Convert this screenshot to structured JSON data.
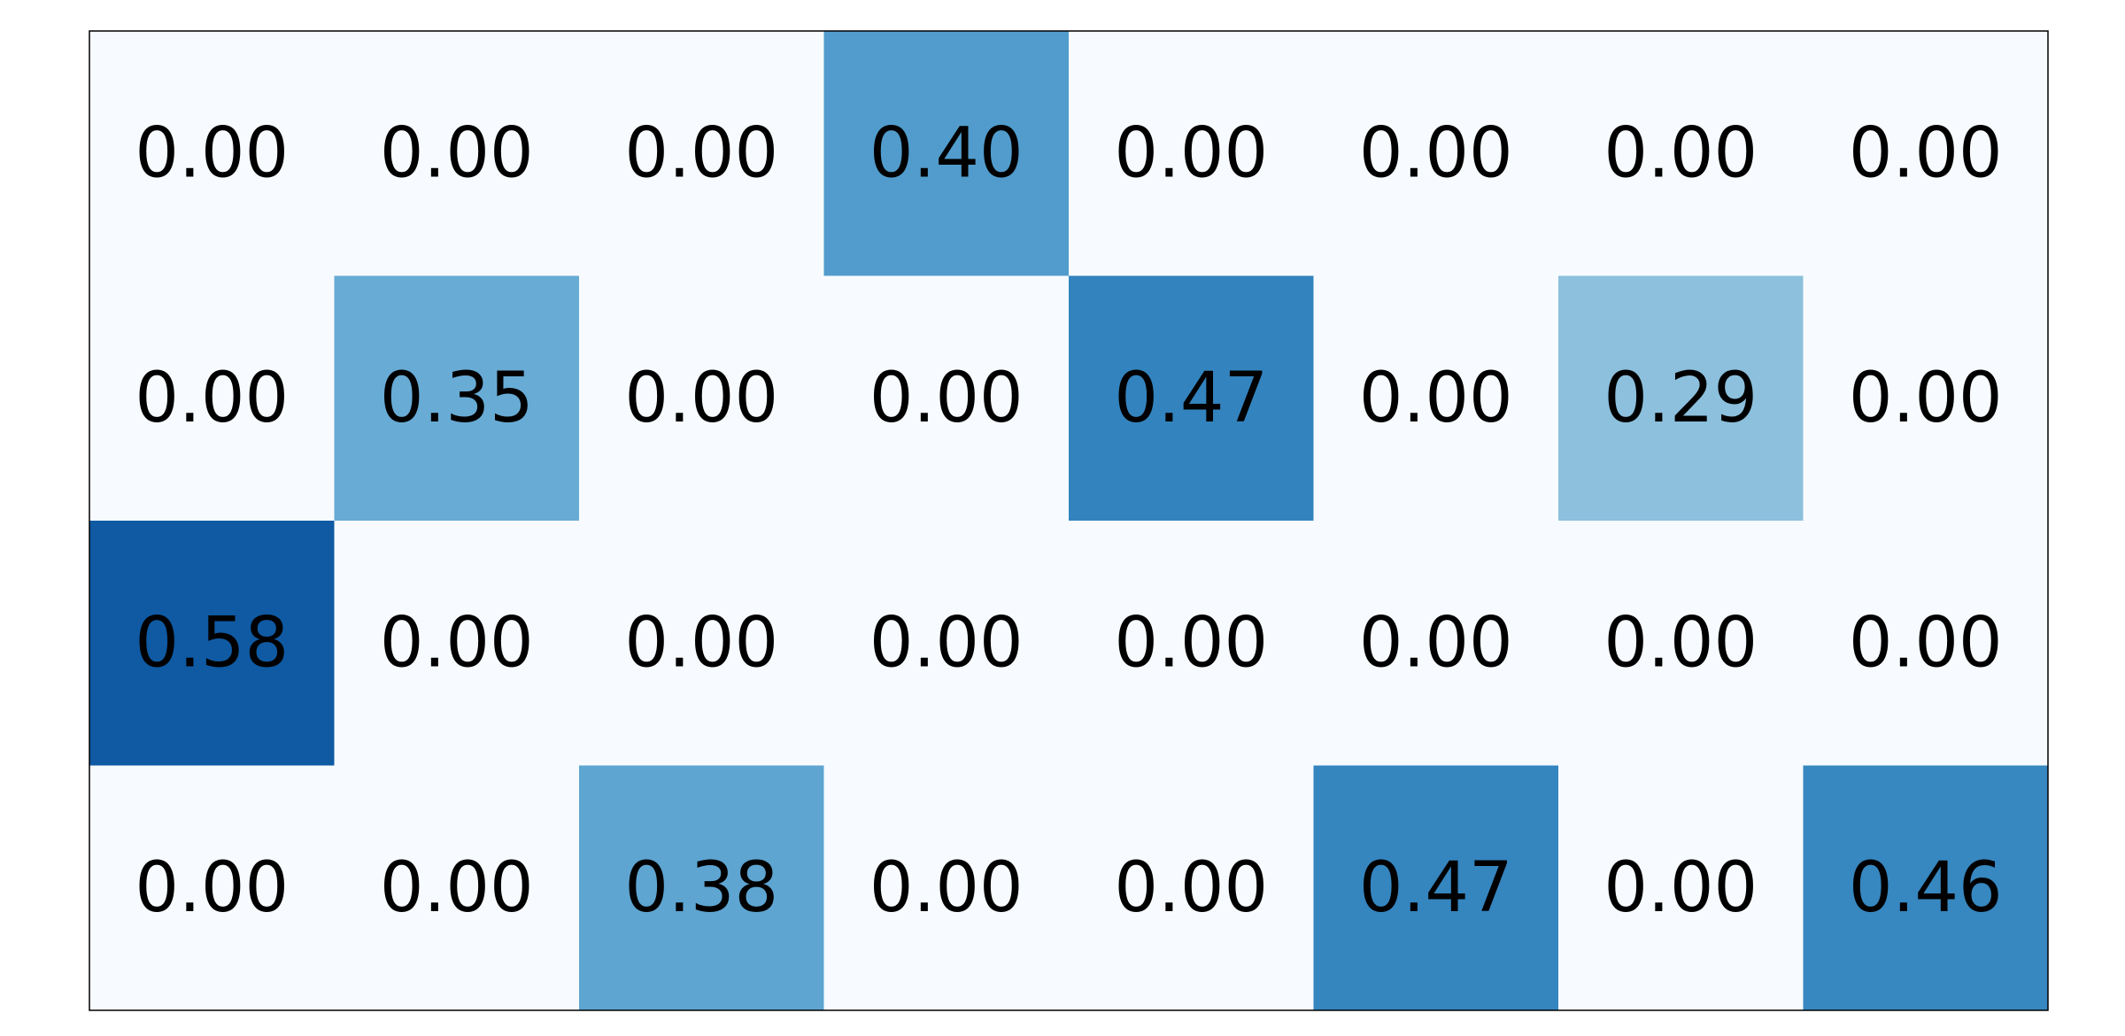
{
  "chart_data": {
    "type": "heatmap",
    "title": "",
    "xlabel": "",
    "ylabel": "",
    "colormap": "Blues",
    "value_range": [
      0,
      0.58
    ],
    "rows": 4,
    "columns": 8,
    "values": [
      [
        0.0,
        0.0,
        0.0,
        0.4,
        0.0,
        0.0,
        0.0,
        0.0
      ],
      [
        0.0,
        0.35,
        0.0,
        0.0,
        0.47,
        0.0,
        0.29,
        0.0
      ],
      [
        0.58,
        0.0,
        0.0,
        0.0,
        0.0,
        0.0,
        0.0,
        0.0
      ],
      [
        0.0,
        0.0,
        0.38,
        0.0,
        0.0,
        0.47,
        0.0,
        0.46
      ]
    ],
    "labels": [
      [
        "0.00",
        "0.00",
        "0.00",
        "0.40",
        "0.00",
        "0.00",
        "0.00",
        "0.00"
      ],
      [
        "0.00",
        "0.35",
        "0.00",
        "0.00",
        "0.47",
        "0.00",
        "0.29",
        "0.00"
      ],
      [
        "0.58",
        "0.00",
        "0.00",
        "0.00",
        "0.00",
        "0.00",
        "0.00",
        "0.00"
      ],
      [
        "0.00",
        "0.00",
        "0.38",
        "0.00",
        "0.00",
        "0.47",
        "0.00",
        "0.46"
      ]
    ],
    "cell_colors": [
      [
        "#f7fbff",
        "#f7fbff",
        "#f7fbff",
        "#519ccc",
        "#f7fbff",
        "#f7fbff",
        "#f7fbff",
        "#f7fbff"
      ],
      [
        "#f7fbff",
        "#68abd5",
        "#f7fbff",
        "#f7fbff",
        "#3383be",
        "#f7fbff",
        "#8cc0dd",
        "#f7fbff"
      ],
      [
        "#0f5aa3",
        "#f7fbff",
        "#f7fbff",
        "#f7fbff",
        "#f7fbff",
        "#f7fbff",
        "#f7fbff",
        "#f7fbff"
      ],
      [
        "#f7fbff",
        "#f7fbff",
        "#5ea5d1",
        "#f7fbff",
        "#f7fbff",
        "#3585bf",
        "#f7fbff",
        "#3787c0"
      ]
    ],
    "label_color": "#000000",
    "frame_color": "#000000"
  }
}
